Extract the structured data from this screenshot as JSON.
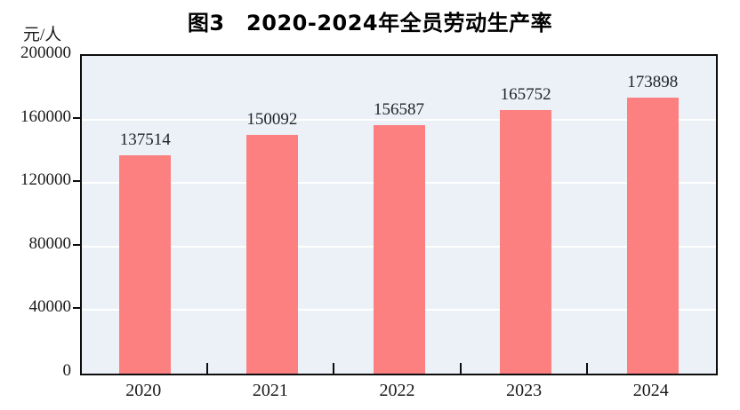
{
  "chart": {
    "title": "图3　2020-2024年全员劳动生产率",
    "unit_label": "元/人"
  },
  "chart_data": {
    "type": "bar",
    "title": "图3　2020-2024年全员劳动生产率",
    "categories": [
      "2020",
      "2021",
      "2022",
      "2023",
      "2024"
    ],
    "values": [
      137514,
      150092,
      156587,
      165752,
      173898
    ],
    "data_labels": [
      "137514",
      "150092",
      "156587",
      "165752",
      "173898"
    ],
    "xlabel": "",
    "ylabel": "元/人",
    "ylim": [
      0,
      200000
    ],
    "yticks": [
      0,
      40000,
      80000,
      120000,
      160000,
      200000
    ],
    "gridlines_at": [
      40000,
      80000,
      120000,
      160000
    ],
    "grid": "horizontal",
    "legend_position": "none",
    "colors": {
      "bar_fill": "#FC8080",
      "plot_background": "#EBF1F6",
      "gridline": "#FFFFFF",
      "axis": "#0D0D0D",
      "text": "#1A1A1A"
    }
  }
}
